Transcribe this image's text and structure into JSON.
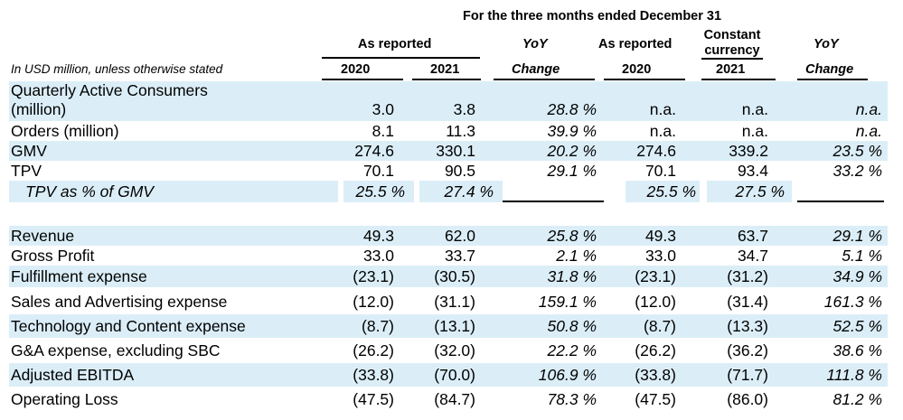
{
  "header": {
    "period_title": "For the three months ended December 31",
    "group_as_reported_1": "As reported",
    "yoy_1": "YoY",
    "group_as_reported_2": "As reported",
    "constant_currency": [
      "Constant",
      "currency"
    ],
    "yoy_2": "YoY",
    "unit_note": "In USD million, unless otherwise stated",
    "col_2020a": "2020",
    "col_2021a": "2021",
    "col_change_1": "Change",
    "col_2020b": "2020",
    "col_2021b": "2021",
    "col_change_2": "Change"
  },
  "rows": [
    {
      "label": [
        "Quarterly Active Consumers",
        "(million)"
      ],
      "v": [
        "3.0",
        "3.8",
        "28.8 %",
        "n.a.",
        "n.a.",
        "n.a."
      ]
    },
    {
      "label": [
        "Orders (million)"
      ],
      "v": [
        "8.1",
        "11.3",
        "39.9 %",
        "n.a.",
        "n.a.",
        "n.a."
      ]
    },
    {
      "label": [
        "GMV"
      ],
      "v": [
        "274.6",
        "330.1",
        "20.2 %",
        "274.6",
        "339.2",
        "23.5 %"
      ]
    },
    {
      "label": [
        "TPV"
      ],
      "v": [
        "70.1",
        "90.5",
        "29.1 %",
        "70.1",
        "93.4",
        "33.2 %"
      ]
    },
    {
      "label": [
        "TPV as % of GMV"
      ],
      "v": [
        "25.5 %",
        "27.4 %",
        "",
        "25.5 %",
        "27.5 %",
        ""
      ]
    },
    {
      "label": [
        "Revenue"
      ],
      "v": [
        "49.3",
        "62.0",
        "25.8 %",
        "49.3",
        "63.7",
        "29.1 %"
      ]
    },
    {
      "label": [
        "Gross Profit"
      ],
      "v": [
        "33.0",
        "33.7",
        "2.1 %",
        "33.0",
        "34.7",
        "5.1 %"
      ]
    },
    {
      "label": [
        "Fulfillment expense"
      ],
      "v": [
        "(23.1)",
        "(30.5)",
        "31.8 %",
        "(23.1)",
        "(31.2)",
        "34.9 %"
      ]
    },
    {
      "label": [
        "Sales and Advertising expense"
      ],
      "v": [
        "(12.0)",
        "(31.1)",
        "159.1 %",
        "(12.0)",
        "(31.4)",
        "161.3 %"
      ]
    },
    {
      "label": [
        "Technology and Content expense"
      ],
      "v": [
        "(8.7)",
        "(13.1)",
        "50.8 %",
        "(8.7)",
        "(13.3)",
        "52.5 %"
      ]
    },
    {
      "label": [
        "G&A expense, excluding SBC"
      ],
      "v": [
        "(26.2)",
        "(32.0)",
        "22.2 %",
        "(26.2)",
        "(36.2)",
        "38.6 %"
      ]
    },
    {
      "label": [
        "Adjusted EBITDA"
      ],
      "v": [
        "(33.8)",
        "(70.0)",
        "106.9 %",
        "(33.8)",
        "(71.7)",
        "111.8 %"
      ]
    },
    {
      "label": [
        "Operating Loss"
      ],
      "v": [
        "(47.5)",
        "(84.7)",
        "78.3 %",
        "(47.5)",
        "(86.0)",
        "81.2 %"
      ]
    }
  ]
}
